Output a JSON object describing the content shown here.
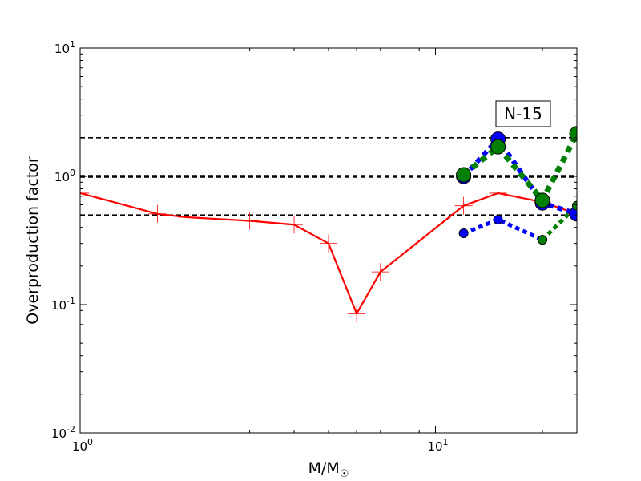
{
  "chart_data": {
    "type": "line",
    "title": "",
    "xlabel": "M/M",
    "xlabel_sub": "☉",
    "ylabel": "Overproduction factor",
    "x_scale": "log",
    "y_scale": "log",
    "xlim": [
      1,
      25
    ],
    "ylim": [
      0.01,
      10
    ],
    "x_ticks": [
      {
        "value": 1,
        "base": "10",
        "exp": "0"
      },
      {
        "value": 10,
        "base": "10",
        "exp": "1"
      }
    ],
    "y_ticks": [
      {
        "value": 0.01,
        "base": "10",
        "exp": "-2"
      },
      {
        "value": 0.1,
        "base": "10",
        "exp": "-1"
      },
      {
        "value": 1,
        "base": "10",
        "exp": "0"
      },
      {
        "value": 10,
        "base": "10",
        "exp": "1"
      }
    ],
    "grid": false,
    "annotation": "N-15",
    "reference_lines": [
      {
        "y": 2.0,
        "style": "dashed",
        "color": "#000000",
        "width": 1.6
      },
      {
        "y": 1.0,
        "style": "dashed",
        "color": "#000000",
        "width": 3.5
      },
      {
        "y": 0.5,
        "style": "dashed",
        "color": "#000000",
        "width": 1.6
      }
    ],
    "series": [
      {
        "style": "solid",
        "color": "#ff0000",
        "marker": "plus",
        "width": 2.2,
        "x": [
          1.0,
          1.65,
          2.0,
          3.0,
          4.0,
          5.0,
          6.0,
          7.0,
          12.0,
          15.0,
          20.0,
          25.0
        ],
        "y": [
          0.74,
          0.51,
          0.48,
          0.45,
          0.42,
          0.3,
          0.085,
          0.18,
          0.59,
          0.74,
          0.63,
          0.51
        ]
      },
      {
        "style": "dotted",
        "color": "#0000ff",
        "marker": "circle",
        "width": 6,
        "marker_size": 9,
        "x": [
          12.0,
          15.0,
          20.0,
          25.0
        ],
        "y": [
          1.0,
          1.95,
          0.62,
          0.51
        ]
      },
      {
        "style": "dotted",
        "color": "#0000ff",
        "marker": "circle",
        "width": 5,
        "marker_size": 5.5,
        "x": [
          12.0,
          15.0,
          20.0
        ],
        "y": [
          0.36,
          0.46,
          0.32
        ]
      },
      {
        "style": "dotted",
        "color": "#008000",
        "marker": "circle",
        "width": 7,
        "marker_size": 9,
        "x": [
          12.0,
          15.0,
          20.0,
          25.0
        ],
        "y": [
          1.03,
          1.7,
          0.65,
          2.15
        ]
      },
      {
        "style": "dotted",
        "color": "#008000",
        "marker": "circle",
        "width": 5,
        "marker_size": 5.5,
        "x": [
          20.0,
          25.0
        ],
        "y": [
          0.32,
          0.59
        ]
      }
    ]
  }
}
